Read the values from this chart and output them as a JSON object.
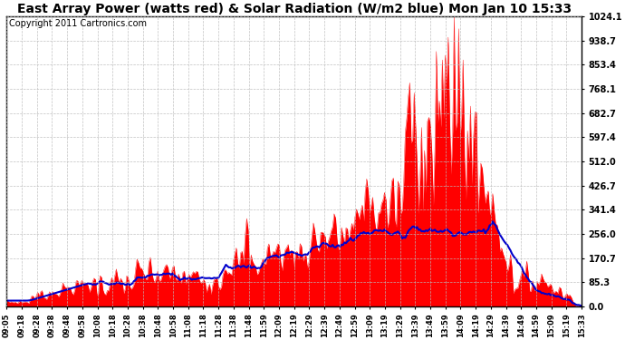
{
  "title": "East Array Power (watts red) & Solar Radiation (W/m2 blue) Mon Jan 10 15:33",
  "copyright": "Copyright 2011 Cartronics.com",
  "yticks": [
    0.0,
    85.3,
    170.7,
    256.0,
    341.4,
    426.7,
    512.0,
    597.4,
    682.7,
    768.1,
    853.4,
    938.7,
    1024.1
  ],
  "ymax": 1024.1,
  "ymin": 0.0,
  "x_labels": [
    "09:05",
    "09:18",
    "09:28",
    "09:38",
    "09:48",
    "09:58",
    "10:08",
    "10:18",
    "10:28",
    "10:38",
    "10:48",
    "10:58",
    "11:08",
    "11:18",
    "11:28",
    "11:38",
    "11:48",
    "11:59",
    "12:09",
    "12:19",
    "12:29",
    "12:39",
    "12:49",
    "12:59",
    "13:09",
    "13:19",
    "13:29",
    "13:39",
    "13:49",
    "13:59",
    "14:09",
    "14:19",
    "14:29",
    "14:39",
    "14:49",
    "14:59",
    "15:09",
    "15:19",
    "15:33"
  ],
  "bg_color": "#ffffff",
  "grid_color": "#bbbbbb",
  "red_color": "#ff0000",
  "blue_color": "#0000cc",
  "title_fontsize": 10,
  "copyright_fontsize": 7
}
